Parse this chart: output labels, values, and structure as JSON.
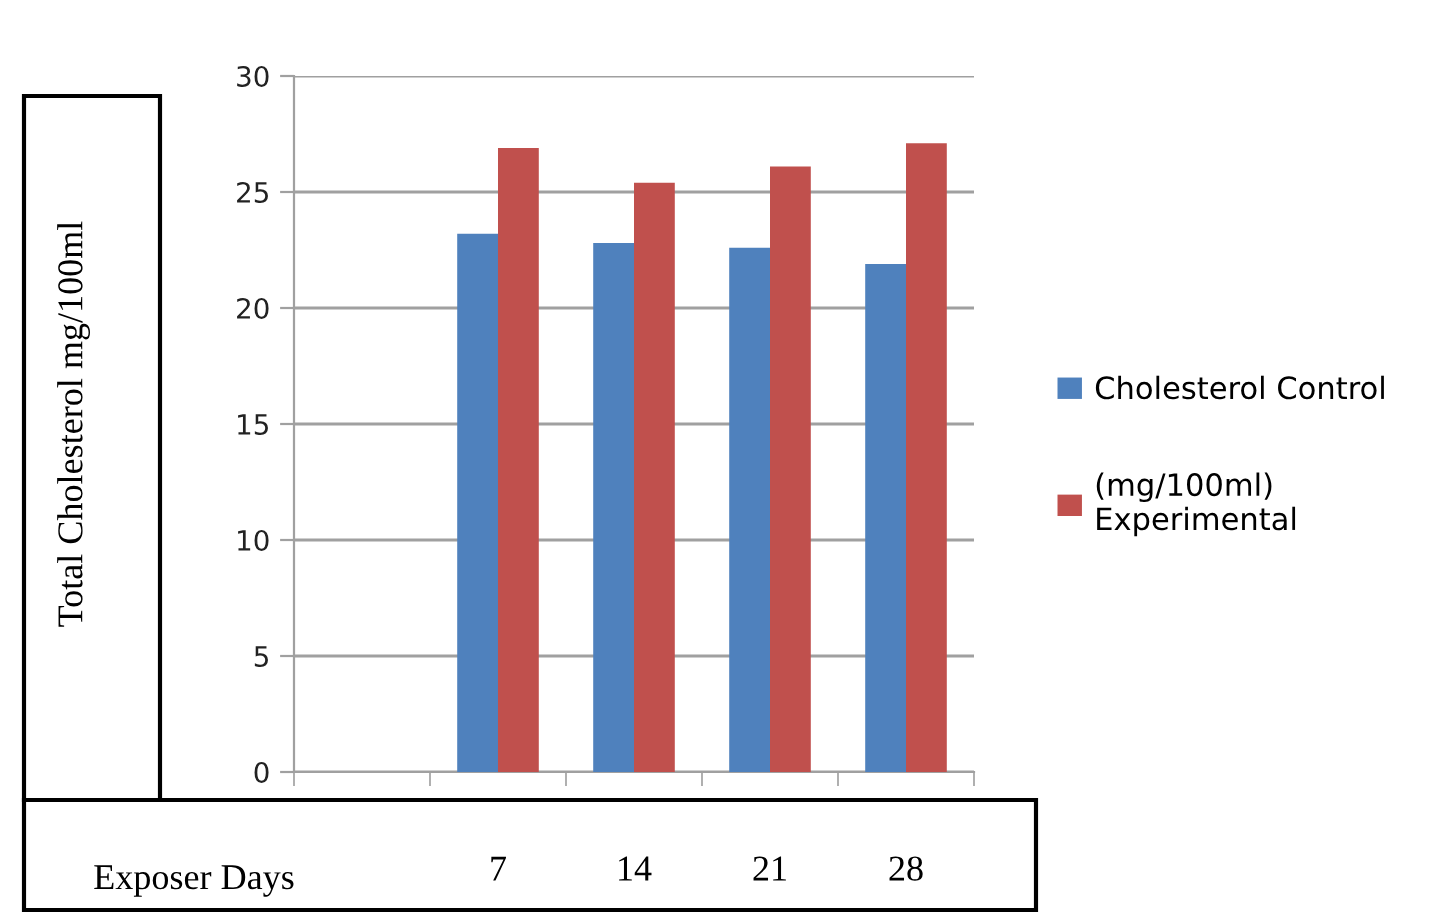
{
  "chart_data": {
    "type": "bar",
    "ylabel": "Total Cholesterol mg/100ml",
    "xlabel": "Exposer Days",
    "categories": [
      null,
      "7",
      "14",
      "21",
      "28"
    ],
    "series": [
      {
        "name": "Cholesterol Control",
        "color": "#4f81bd",
        "values": [
          null,
          23.2,
          22.8,
          22.6,
          21.9
        ]
      },
      {
        "name": "(mg/100ml)\nExperimental",
        "color": "#c0504d",
        "values": [
          null,
          26.9,
          25.4,
          26.1,
          27.1
        ]
      }
    ],
    "ylim": [
      0,
      30
    ],
    "yticks": [
      0,
      5,
      10,
      15,
      20,
      25,
      30
    ],
    "grid": "y",
    "legend": "right"
  }
}
